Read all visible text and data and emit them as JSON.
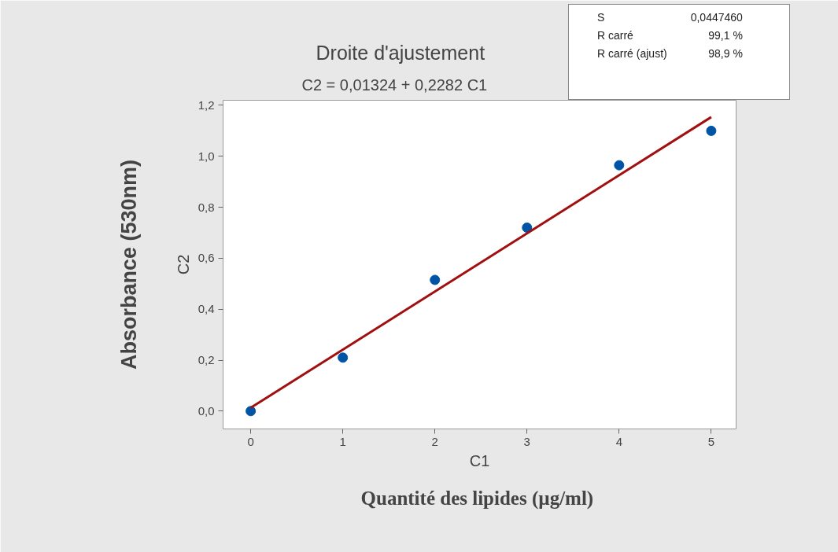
{
  "chart_data": {
    "type": "scatter",
    "title": "Droite d'ajustement",
    "subtitle": "C2 = 0,01324 + 0,2282 C1",
    "xlabel": "C1",
    "ylabel": "C2",
    "x": [
      0,
      1,
      2,
      3,
      4,
      5
    ],
    "series": [
      {
        "color": "#0054a6",
        "marker": "circle",
        "values": [
          0.0,
          0.21,
          0.515,
          0.72,
          0.965,
          1.1
        ]
      },
      {
        "type": "line",
        "color": "#a01010",
        "x": [
          0,
          5
        ],
        "values": [
          0.013,
          1.154
        ]
      }
    ],
    "grid": false,
    "xlim": [
      -0.3,
      5.27
    ],
    "ylim": [
      -0.07,
      1.22
    ],
    "xticks": [
      0,
      1,
      2,
      3,
      4,
      5
    ],
    "yticks": [
      {
        "value": 0,
        "label": "0,0"
      },
      {
        "value": 0.2,
        "label": "0,2"
      },
      {
        "value": 0.4,
        "label": "0,4"
      },
      {
        "value": 0.6,
        "label": "0,6"
      },
      {
        "value": 0.8,
        "label": "0,8"
      },
      {
        "value": 1.0,
        "label": "1,0"
      },
      {
        "value": 1.2,
        "label": "1,2"
      }
    ],
    "annotations": [
      "Absorbance (530nm)",
      "Quantité des lipides  (µg/ml)",
      "S",
      "0,0447460",
      "R carré",
      "99,1 %",
      "R carré (ajust)",
      "98,9 %"
    ]
  }
}
